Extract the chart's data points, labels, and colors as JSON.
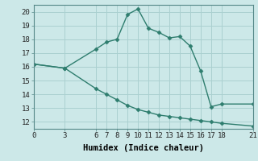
{
  "xlabel": "Humidex (Indice chaleur)",
  "background_color": "#cce8e8",
  "grid_color": "#aad0d0",
  "line_color": "#2e7d6e",
  "x_ticks": [
    0,
    3,
    6,
    7,
    8,
    9,
    10,
    11,
    12,
    13,
    14,
    15,
    16,
    17,
    18,
    21
  ],
  "xlim": [
    0,
    21
  ],
  "ylim": [
    11.5,
    20.5
  ],
  "y_ticks": [
    12,
    13,
    14,
    15,
    16,
    17,
    18,
    19,
    20
  ],
  "series1_x": [
    0,
    3,
    6,
    7,
    8,
    9,
    10,
    11,
    12,
    13,
    14,
    15,
    16,
    17,
    18,
    21
  ],
  "series1_y": [
    16.2,
    15.9,
    17.3,
    17.8,
    18.0,
    19.8,
    20.2,
    18.8,
    18.5,
    18.1,
    18.2,
    17.5,
    15.7,
    13.1,
    13.3,
    13.3
  ],
  "series2_x": [
    0,
    3,
    6,
    7,
    8,
    9,
    10,
    11,
    12,
    13,
    14,
    15,
    16,
    17,
    18,
    21
  ],
  "series2_y": [
    16.2,
    15.9,
    14.4,
    14.0,
    13.6,
    13.2,
    12.9,
    12.7,
    12.5,
    12.4,
    12.3,
    12.2,
    12.1,
    12.0,
    11.9,
    11.7
  ],
  "tick_fontsize": 6.5,
  "xlabel_fontsize": 7.5,
  "marker": "D",
  "marker_size": 2.5,
  "linewidth": 1.0
}
